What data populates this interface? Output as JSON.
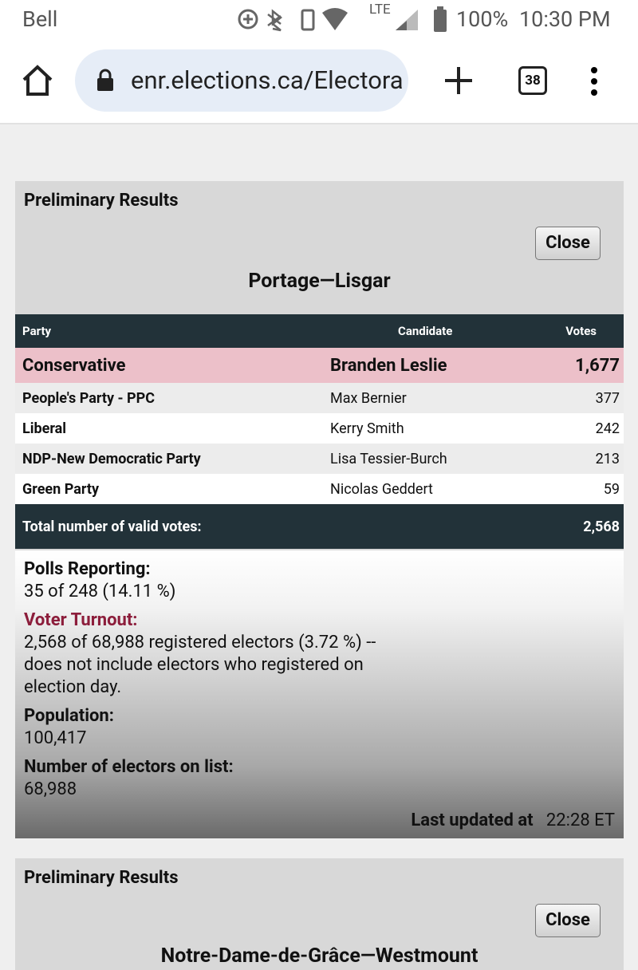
{
  "status_bar": {
    "carrier": "Bell",
    "network": "LTE",
    "battery": "100%",
    "time": "10:30 PM"
  },
  "browser": {
    "url": "enr.elections.ca/Electora",
    "tabs": "38"
  },
  "panels": [
    {
      "heading": "Preliminary Results",
      "close": "Close",
      "riding": "Portage—Lisgar",
      "table": {
        "columns": [
          "Party",
          "Candidate",
          "Votes"
        ],
        "rows": [
          [
            "Conservative",
            "Branden Leslie",
            "1,677"
          ],
          [
            "People's Party - PPC",
            "Max Bernier",
            "377"
          ],
          [
            "Liberal",
            "Kerry Smith",
            "242"
          ],
          [
            "NDP-New Democratic Party",
            "Lisa Tessier-Burch",
            "213"
          ],
          [
            "Green Party",
            "Nicolas Geddert",
            "59"
          ]
        ],
        "total_label": "Total number of valid votes:",
        "total": "2,568"
      },
      "polls_label": "Polls Reporting:",
      "polls": "35 of 248 (14.11 %)",
      "turnout_label": "Voter Turnout:",
      "turnout": "2,568 of 68,988 registered electors (3.72 %) -- does not include electors who registered on election day.",
      "population_label": "Population:",
      "population": "100,417",
      "electors_label": "Number of electors on list:",
      "electors": "68,988",
      "updated_label": "Last updated at",
      "updated": "22:28 ET"
    },
    {
      "heading": "Preliminary Results",
      "close": "Close",
      "riding": "Notre-Dame-de-Grâce—Westmount"
    }
  ]
}
